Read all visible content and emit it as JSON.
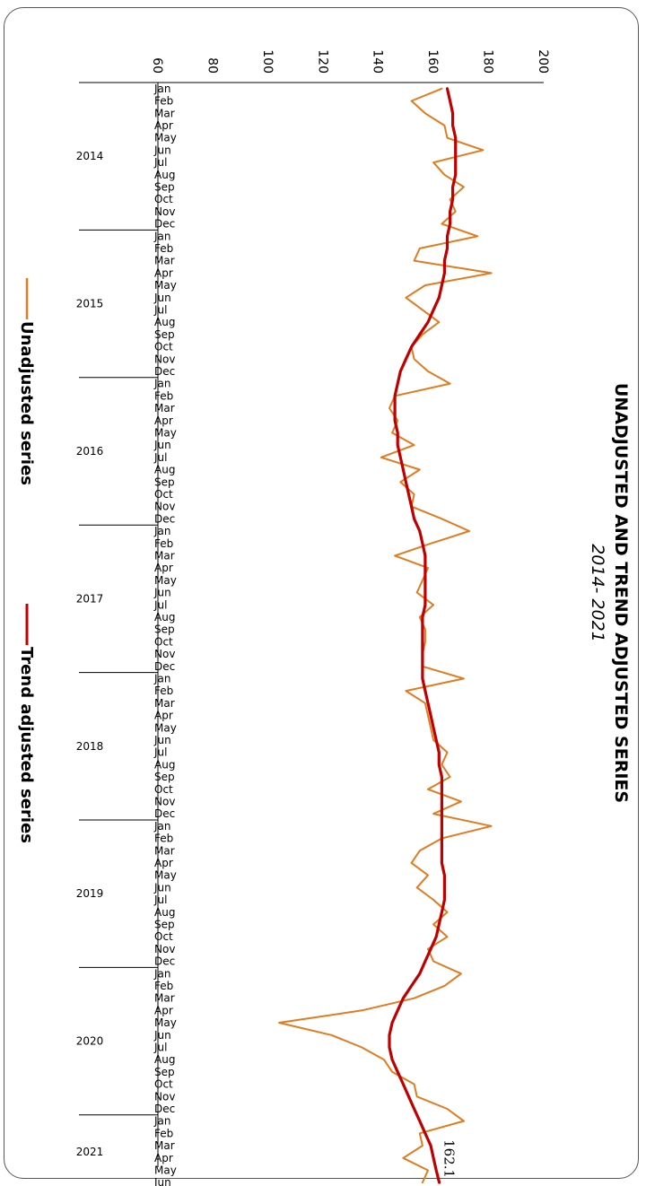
{
  "chart_data": {
    "type": "line",
    "title": "UNADJUSTED AND TREND ADJUSTED SERIES",
    "subtitle": "2014- 2021",
    "orientation": "rotated-90-clockwise",
    "ylim": [
      60,
      200
    ],
    "yticks": [
      60,
      80,
      100,
      120,
      140,
      160,
      180,
      200
    ],
    "months": [
      "Jan",
      "Feb",
      "Mar",
      "Apr",
      "May",
      "Jun",
      "Jul",
      "Aug",
      "Sep",
      "Oct",
      "Nov",
      "Dec"
    ],
    "years": [
      "2014",
      "2015",
      "2016",
      "2017",
      "2018",
      "2019",
      "2020",
      "2021"
    ],
    "months_in_last_year": 6,
    "series": [
      {
        "name": "Unadjusted series",
        "color": "#e07b1f",
        "values": [
          163,
          152,
          157,
          164,
          165,
          178,
          160,
          164,
          171,
          166,
          168,
          163,
          176,
          155,
          153,
          181,
          157,
          150,
          156,
          162,
          156,
          152,
          153,
          158,
          166,
          146,
          144,
          147,
          145,
          153,
          141,
          155,
          148,
          153,
          152,
          163,
          173,
          159,
          146,
          158,
          156,
          154,
          160,
          155,
          157,
          157,
          156,
          156,
          171,
          150,
          157,
          158,
          159,
          160,
          165,
          163,
          166,
          158,
          170,
          160,
          181,
          163,
          155,
          152,
          158,
          154,
          160,
          165,
          160,
          165,
          158,
          160,
          170,
          164,
          153,
          134,
          104,
          123,
          134,
          142,
          145,
          153,
          154,
          165,
          171,
          155,
          156,
          149,
          158,
          156
        ]
      },
      {
        "name": "Trend adjusted series",
        "color": "#c00000",
        "values": [
          165,
          166,
          167,
          167,
          168,
          168,
          168,
          168,
          167,
          167,
          166,
          166,
          165,
          165,
          164,
          164,
          163,
          162,
          160,
          158,
          155,
          152,
          150,
          148,
          147,
          146,
          146,
          146,
          147,
          147,
          148,
          149,
          150,
          151,
          152,
          153,
          155,
          156,
          157,
          157,
          157,
          157,
          157,
          156,
          156,
          156,
          156,
          156,
          156,
          157,
          158,
          159,
          160,
          161,
          162,
          162,
          163,
          163,
          163,
          163,
          163,
          163,
          163,
          163,
          164,
          164,
          164,
          163,
          162,
          161,
          159,
          157,
          155,
          152,
          149,
          147,
          145,
          144,
          144,
          145,
          147,
          149,
          151,
          153,
          155,
          157,
          159,
          160,
          161,
          162.1
        ]
      }
    ],
    "end_label": "162.1",
    "grid": false,
    "legend_position": "bottom"
  }
}
